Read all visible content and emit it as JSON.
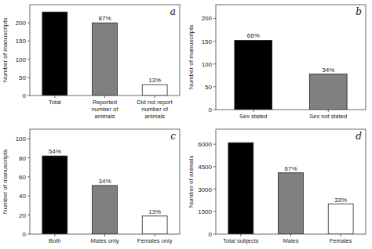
{
  "chart_data": [
    {
      "type": "bar",
      "title": "a",
      "categories": [
        "Total",
        "Reported\nnumber of\nanimals",
        "Did not report\nnumber of\nanimals"
      ],
      "values": [
        230,
        200,
        30
      ],
      "colors": [
        "#000000",
        "#808080",
        "#ffffff"
      ],
      "annotations": [
        null,
        "87%",
        "13%"
      ],
      "ylabel": "Number of manuscripts",
      "ylim": [
        0,
        250
      ],
      "yticks": [
        0,
        50,
        100,
        150,
        200
      ]
    },
    {
      "type": "bar",
      "title": "b",
      "categories": [
        "Sex stated",
        "Sex not stated"
      ],
      "values": [
        152,
        78
      ],
      "colors": [
        "#000000",
        "#808080"
      ],
      "annotations": [
        "66%",
        "34%"
      ],
      "ylabel": "Number of manuscripts",
      "ylim": [
        0,
        230
      ],
      "yticks": [
        0,
        50,
        100,
        150,
        200
      ]
    },
    {
      "type": "bar",
      "title": "c",
      "categories": [
        "Both",
        "Males only",
        "Females only"
      ],
      "values": [
        82,
        51,
        19
      ],
      "colors": [
        "#000000",
        "#808080",
        "#ffffff"
      ],
      "annotations": [
        "54%",
        "34%",
        "13%"
      ],
      "ylabel": "Number of manuscripts",
      "ylim": [
        0,
        110
      ],
      "yticks": [
        0,
        20,
        40,
        60,
        80,
        100
      ]
    },
    {
      "type": "bar",
      "title": "d",
      "categories": [
        "Total subjects",
        "Males",
        "Females"
      ],
      "values": [
        6100,
        4090,
        2010
      ],
      "colors": [
        "#000000",
        "#808080",
        "#ffffff"
      ],
      "annotations": [
        null,
        "67%",
        "33%"
      ],
      "ylabel": "Number of animals",
      "ylim": [
        0,
        7000
      ],
      "yticks": [
        0,
        1500,
        3000,
        4500,
        6000
      ]
    }
  ]
}
